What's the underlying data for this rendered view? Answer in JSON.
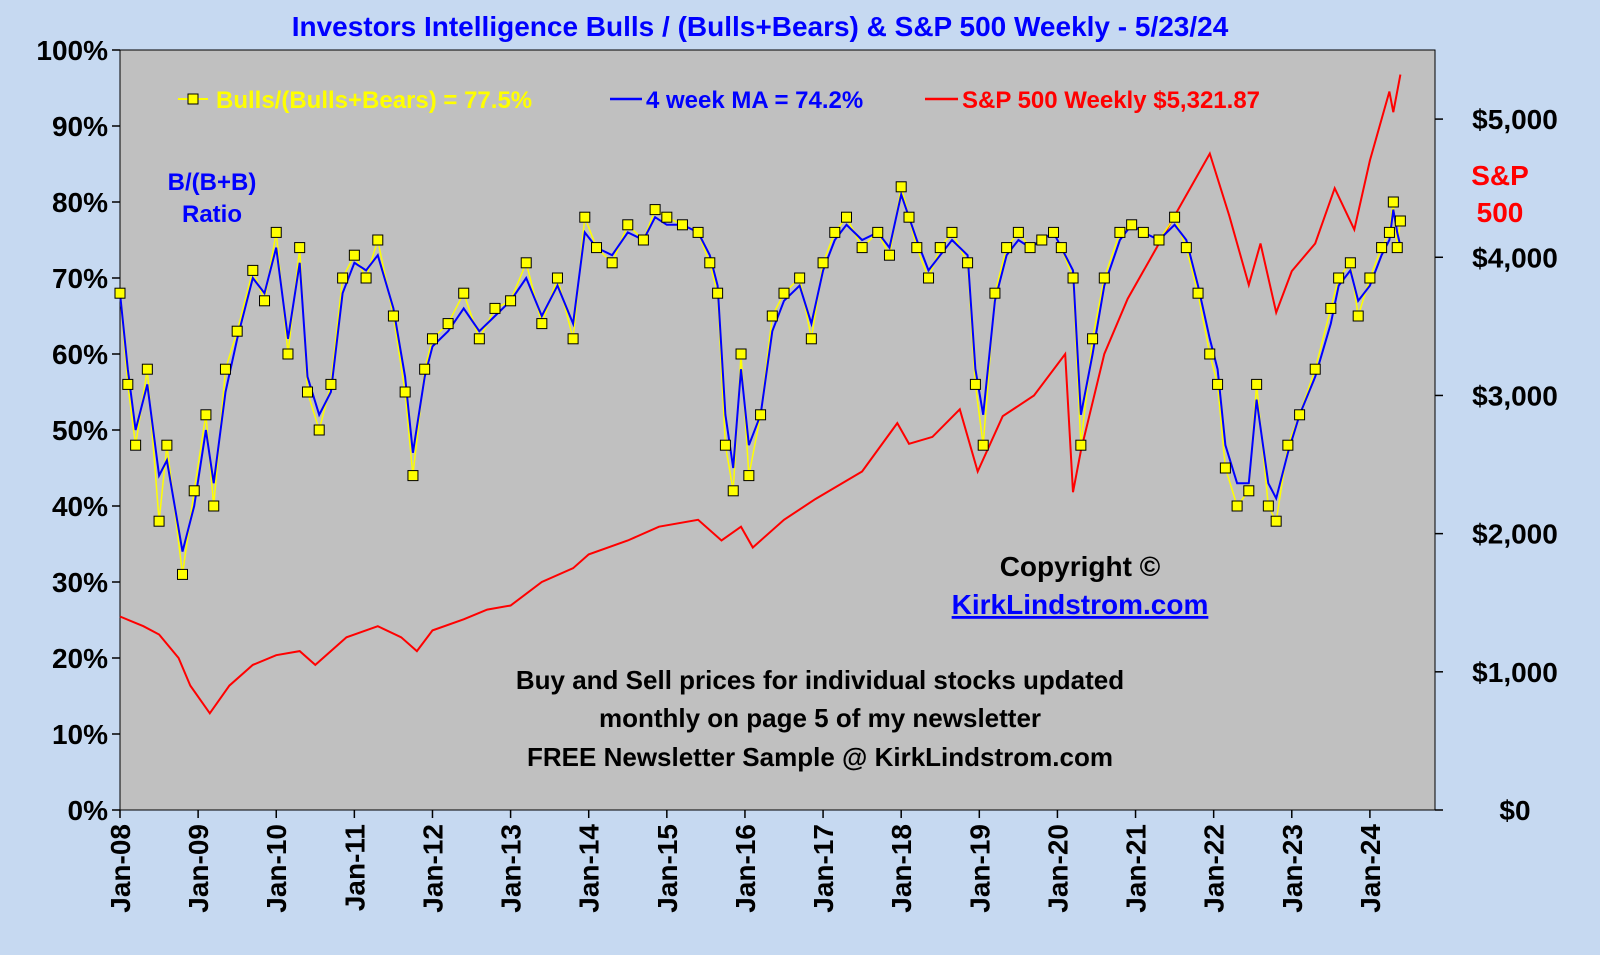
{
  "chart_data": {
    "type": "line",
    "title": "Investors Intelligence Bulls / (Bulls+Bears) & S&P 500 Weekly  - 5/23/24",
    "x_ticks": [
      "Jan-08",
      "Jan-09",
      "Jan-10",
      "Jan-11",
      "Jan-12",
      "Jan-13",
      "Jan-14",
      "Jan-15",
      "Jan-16",
      "Jan-17",
      "Jan-18",
      "Jan-19",
      "Jan-20",
      "Jan-21",
      "Jan-22",
      "Jan-23",
      "Jan-24"
    ],
    "x_range": [
      "2008-01",
      "2024-11"
    ],
    "y_left": {
      "ticks": [
        "0%",
        "10%",
        "20%",
        "30%",
        "40%",
        "50%",
        "60%",
        "70%",
        "80%",
        "90%",
        "100%"
      ],
      "range": [
        0,
        100
      ]
    },
    "y_right": {
      "ticks": [
        "$0",
        "$1,000",
        "$2,000",
        "$3,000",
        "$4,000",
        "$5,000"
      ],
      "range": [
        0,
        5500
      ]
    },
    "left_axis_label": [
      "B/(B+B)",
      "Ratio"
    ],
    "right_axis_label": [
      "S&P",
      "500"
    ],
    "legend": {
      "placement": "top",
      "entries": [
        {
          "label": "Bulls/(Bulls+Bears) = 77.5%",
          "color": "#ffff00"
        },
        {
          "label": "4 week MA = 74.2%",
          "color": "#0000ff"
        },
        {
          "label": "S&P 500 Weekly $5,321.87",
          "color": "#ff0000"
        }
      ]
    },
    "grid": false,
    "plot_background": "#c0c0c0",
    "series": [
      {
        "name": "Bulls/(Bulls+Bears) = 77.5%",
        "axis": "left",
        "color": "#ffff00",
        "marker": "square",
        "x": [
          2008.0,
          2008.1,
          2008.2,
          2008.35,
          2008.5,
          2008.6,
          2008.8,
          2008.95,
          2009.1,
          2009.2,
          2009.35,
          2009.5,
          2009.7,
          2009.85,
          2010.0,
          2010.15,
          2010.3,
          2010.4,
          2010.55,
          2010.7,
          2010.85,
          2011.0,
          2011.15,
          2011.3,
          2011.5,
          2011.65,
          2011.75,
          2011.9,
          2012.0,
          2012.2,
          2012.4,
          2012.6,
          2012.8,
          2013.0,
          2013.2,
          2013.4,
          2013.6,
          2013.8,
          2013.95,
          2014.1,
          2014.3,
          2014.5,
          2014.7,
          2014.85,
          2015.0,
          2015.2,
          2015.4,
          2015.55,
          2015.65,
          2015.75,
          2015.85,
          2015.95,
          2016.05,
          2016.2,
          2016.35,
          2016.5,
          2016.7,
          2016.85,
          2017.0,
          2017.15,
          2017.3,
          2017.5,
          2017.7,
          2017.85,
          2018.0,
          2018.1,
          2018.2,
          2018.35,
          2018.5,
          2018.65,
          2018.85,
          2018.95,
          2019.05,
          2019.2,
          2019.35,
          2019.5,
          2019.65,
          2019.8,
          2019.95,
          2020.05,
          2020.2,
          2020.3,
          2020.45,
          2020.6,
          2020.8,
          2020.95,
          2021.1,
          2021.3,
          2021.5,
          2021.65,
          2021.8,
          2021.95,
          2022.05,
          2022.15,
          2022.3,
          2022.45,
          2022.55,
          2022.7,
          2022.8,
          2022.95,
          2023.1,
          2023.3,
          2023.5,
          2023.6,
          2023.75,
          2023.85,
          2024.0,
          2024.15,
          2024.25,
          2024.3,
          2024.35,
          2024.39
        ],
        "values": [
          68,
          56,
          48,
          58,
          38,
          48,
          31,
          42,
          52,
          40,
          58,
          63,
          71,
          67,
          76,
          60,
          74,
          55,
          50,
          56,
          70,
          73,
          70,
          75,
          65,
          55,
          44,
          58,
          62,
          64,
          68,
          62,
          66,
          67,
          72,
          64,
          70,
          62,
          78,
          74,
          72,
          77,
          75,
          79,
          78,
          77,
          76,
          72,
          68,
          48,
          42,
          60,
          44,
          52,
          65,
          68,
          70,
          62,
          72,
          76,
          78,
          74,
          76,
          73,
          82,
          78,
          74,
          70,
          74,
          76,
          72,
          56,
          48,
          68,
          74,
          76,
          74,
          75,
          76,
          74,
          70,
          48,
          62,
          70,
          76,
          77,
          76,
          75,
          78,
          74,
          68,
          60,
          56,
          45,
          40,
          42,
          56,
          40,
          38,
          48,
          52,
          58,
          66,
          70,
          72,
          65,
          70,
          74,
          76,
          80,
          74,
          77.5
        ]
      },
      {
        "name": "4 week MA = 74.2%",
        "axis": "left",
        "color": "#0000ff",
        "x": [
          2008.0,
          2008.1,
          2008.2,
          2008.35,
          2008.5,
          2008.6,
          2008.8,
          2008.95,
          2009.1,
          2009.2,
          2009.35,
          2009.5,
          2009.7,
          2009.85,
          2010.0,
          2010.15,
          2010.3,
          2010.4,
          2010.55,
          2010.7,
          2010.85,
          2011.0,
          2011.15,
          2011.3,
          2011.5,
          2011.65,
          2011.75,
          2011.9,
          2012.0,
          2012.2,
          2012.4,
          2012.6,
          2012.8,
          2013.0,
          2013.2,
          2013.4,
          2013.6,
          2013.8,
          2013.95,
          2014.1,
          2014.3,
          2014.5,
          2014.7,
          2014.85,
          2015.0,
          2015.2,
          2015.4,
          2015.55,
          2015.65,
          2015.75,
          2015.85,
          2015.95,
          2016.05,
          2016.2,
          2016.35,
          2016.5,
          2016.7,
          2016.85,
          2017.0,
          2017.15,
          2017.3,
          2017.5,
          2017.7,
          2017.85,
          2018.0,
          2018.1,
          2018.2,
          2018.35,
          2018.5,
          2018.65,
          2018.85,
          2018.95,
          2019.05,
          2019.2,
          2019.35,
          2019.5,
          2019.65,
          2019.8,
          2019.95,
          2020.05,
          2020.2,
          2020.3,
          2020.45,
          2020.6,
          2020.8,
          2020.95,
          2021.1,
          2021.3,
          2021.5,
          2021.65,
          2021.8,
          2021.95,
          2022.05,
          2022.15,
          2022.3,
          2022.45,
          2022.55,
          2022.7,
          2022.8,
          2022.95,
          2023.1,
          2023.3,
          2023.5,
          2023.6,
          2023.75,
          2023.85,
          2024.0,
          2024.15,
          2024.25,
          2024.3,
          2024.35,
          2024.39
        ],
        "values": [
          68,
          58,
          50,
          56,
          44,
          46,
          34,
          40,
          50,
          43,
          55,
          62,
          70,
          68,
          74,
          62,
          72,
          57,
          52,
          55,
          68,
          72,
          71,
          73,
          66,
          57,
          47,
          57,
          61,
          63,
          66,
          63,
          65,
          67,
          70,
          65,
          69,
          64,
          76,
          74,
          73,
          76,
          75,
          78,
          77,
          77,
          76,
          73,
          69,
          52,
          45,
          58,
          48,
          52,
          63,
          67,
          69,
          64,
          71,
          75,
          77,
          75,
          76,
          74,
          81,
          78,
          75,
          71,
          73,
          75,
          73,
          58,
          52,
          67,
          73,
          75,
          74,
          75,
          76,
          74,
          71,
          52,
          60,
          69,
          75,
          77,
          76,
          75,
          77,
          75,
          69,
          62,
          58,
          48,
          43,
          43,
          54,
          43,
          41,
          47,
          52,
          57,
          64,
          69,
          71,
          67,
          69,
          73,
          75,
          79,
          76,
          74.2
        ]
      },
      {
        "name": "S&P 500 Weekly $5,321.87",
        "axis": "right",
        "color": "#ff0000",
        "x": [
          2008.0,
          2008.3,
          2008.5,
          2008.75,
          2008.9,
          2009.15,
          2009.4,
          2009.7,
          2010.0,
          2010.3,
          2010.5,
          2010.9,
          2011.3,
          2011.6,
          2011.8,
          2012.0,
          2012.4,
          2012.7,
          2013.0,
          2013.4,
          2013.8,
          2014.0,
          2014.5,
          2014.9,
          2015.4,
          2015.7,
          2015.95,
          2016.1,
          2016.5,
          2016.9,
          2017.5,
          2017.95,
          2018.1,
          2018.4,
          2018.75,
          2018.98,
          2019.3,
          2019.7,
          2020.1,
          2020.2,
          2020.3,
          2020.6,
          2020.9,
          2021.3,
          2021.6,
          2021.95,
          2022.2,
          2022.45,
          2022.6,
          2022.8,
          2023.0,
          2023.3,
          2023.55,
          2023.8,
          2024.0,
          2024.25,
          2024.3,
          2024.39
        ],
        "values": [
          1400,
          1330,
          1270,
          1100,
          900,
          700,
          900,
          1050,
          1120,
          1150,
          1050,
          1250,
          1330,
          1250,
          1150,
          1300,
          1380,
          1450,
          1480,
          1650,
          1750,
          1850,
          1950,
          2050,
          2100,
          1950,
          2050,
          1900,
          2100,
          2250,
          2450,
          2800,
          2650,
          2700,
          2900,
          2450,
          2850,
          3000,
          3300,
          2300,
          2600,
          3300,
          3700,
          4100,
          4400,
          4750,
          4300,
          3800,
          4100,
          3600,
          3900,
          4100,
          4500,
          4200,
          4700,
          5200,
          5050,
          5322
        ]
      }
    ],
    "annotations": [
      "Copyright ©",
      "KirkLindstrom.com",
      "Buy and Sell prices for individual stocks updated",
      "monthly on page 5 of my newsletter",
      "FREE Newsletter Sample @ KirkLindstrom.com"
    ]
  }
}
